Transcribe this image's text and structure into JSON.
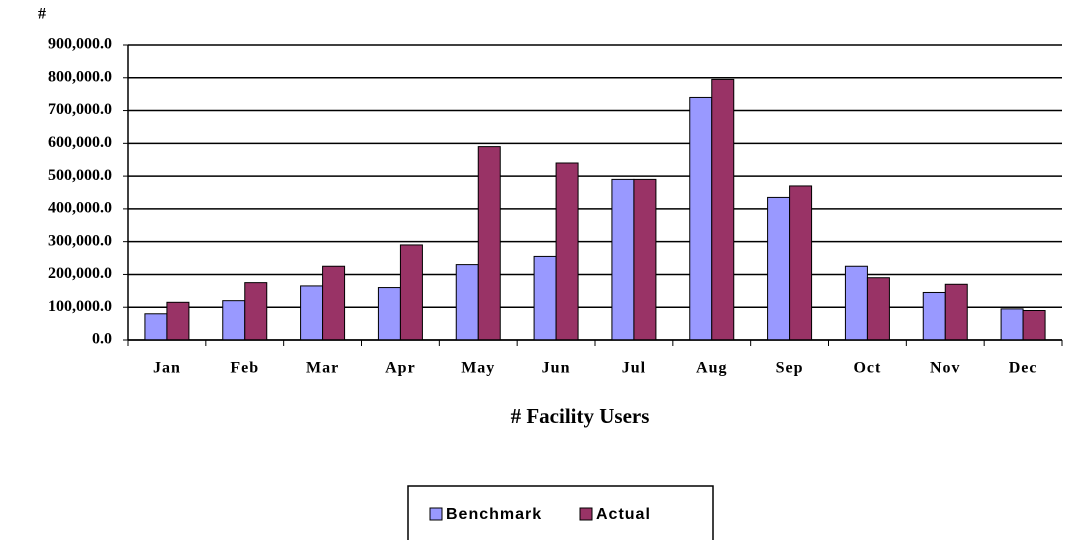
{
  "chart_data": {
    "type": "bar",
    "ylabel": "#",
    "xlabel": "# Facility Users",
    "categories": [
      "Jan",
      "Feb",
      "Mar",
      "Apr",
      "May",
      "Jun",
      "Jul",
      "Aug",
      "Sep",
      "Oct",
      "Nov",
      "Dec"
    ],
    "series": [
      {
        "name": "Benchmark",
        "color": "#9999ff",
        "values": [
          80000,
          120000,
          165000,
          160000,
          230000,
          255000,
          490000,
          740000,
          435000,
          225000,
          145000,
          95000
        ]
      },
      {
        "name": "Actual",
        "color": "#993366",
        "values": [
          115000,
          175000,
          225000,
          290000,
          590000,
          540000,
          490000,
          795000,
          470000,
          190000,
          170000,
          90000
        ]
      }
    ],
    "ylim": [
      0,
      900000
    ],
    "yticks": [
      {
        "value": 0,
        "label": "0.0"
      },
      {
        "value": 100000,
        "label": "100,000.0"
      },
      {
        "value": 200000,
        "label": "200,000.0"
      },
      {
        "value": 300000,
        "label": "300,000.0"
      },
      {
        "value": 400000,
        "label": "400,000.0"
      },
      {
        "value": 500000,
        "label": "500,000.0"
      },
      {
        "value": 600000,
        "label": "600,000.0"
      },
      {
        "value": 700000,
        "label": "700,000.0"
      },
      {
        "value": 800000,
        "label": "800,000.0"
      },
      {
        "value": 900000,
        "label": "900,000.0"
      }
    ],
    "grid": true,
    "legend": "bottom"
  }
}
